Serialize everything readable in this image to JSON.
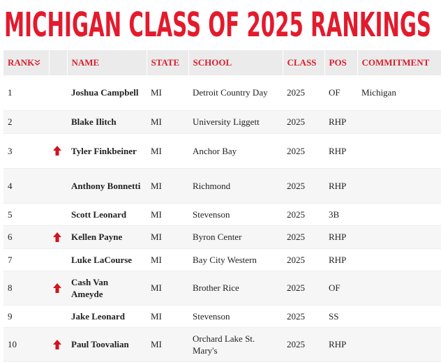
{
  "header": {
    "title": "MICHIGAN CLASS OF 2025 RANKINGS"
  },
  "table": {
    "columns": [
      "RANK",
      "NAME",
      "STATE",
      "SCHOOL",
      "CLASS",
      "POS",
      "COMMITMENT"
    ],
    "rows": [
      {
        "rank": 1,
        "name": "Joshua Campbell",
        "state": "MI",
        "school": "Detroit Country Day",
        "class": 2025,
        "pos": "OF",
        "commitment": "Michigan"
      },
      {
        "rank": 2,
        "name": "Blake Ilitch",
        "state": "MI",
        "school": "University Liggett",
        "class": 2025,
        "pos": "RHP"
      },
      {
        "rank": 3,
        "name": "Tyler Finkbeiner",
        "state": "MI",
        "school": "Anchor Bay",
        "class": 2025,
        "pos": "RHP"
      },
      {
        "rank": 4,
        "name": "Anthony Bonnetti",
        "state": "MI",
        "school": "Richmond",
        "class": 2025,
        "pos": "RHP"
      },
      {
        "rank": 5,
        "name": "Scott Leonard",
        "state": "MI",
        "school": "Stevenson",
        "class": 2025,
        "pos": "3B"
      },
      {
        "rank": 6,
        "name": "Kellen Payne",
        "state": "MI",
        "school": "Byron Center",
        "class": 2025,
        "pos": "RHP"
      },
      {
        "rank": 7,
        "name": "Luke LaCourse",
        "state": "MI",
        "school": "Bay City Western",
        "class": 2025,
        "pos": "RHP"
      },
      {
        "rank": 8,
        "name": "Cash Van Ameyde",
        "state": "MI",
        "school": "Brother Rice",
        "class": 2025,
        "pos": "OF"
      },
      {
        "rank": 9,
        "name": "Jake Leonard",
        "state": "MI",
        "school": "Stevenson",
        "class": 2025,
        "pos": "SS"
      },
      {
        "rank": 10,
        "name": "Paul Toovalian",
        "state": "MI",
        "school": "Orchard Lake St. Mary's",
        "class": 2025,
        "pos": "RHP"
      }
    ]
  }
}
